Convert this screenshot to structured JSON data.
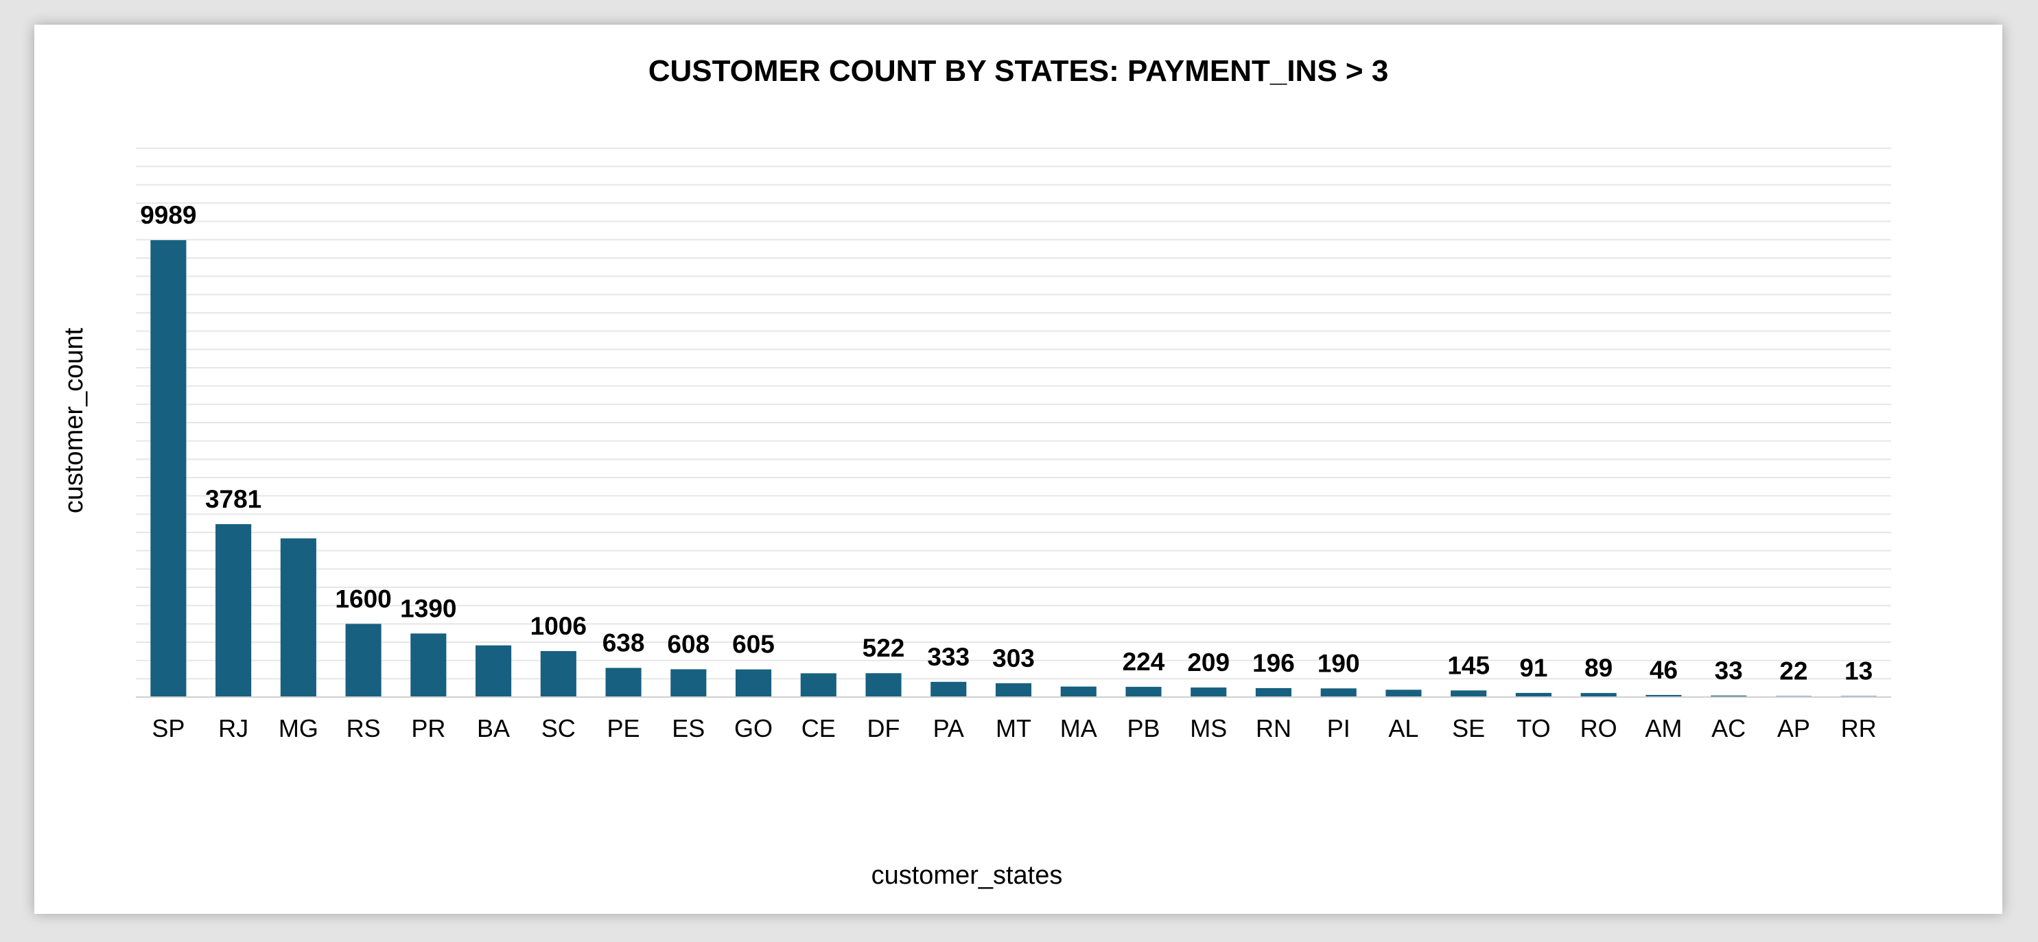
{
  "chart_data": {
    "type": "bar",
    "title": "CUSTOMER COUNT BY STATES: PAYMENT_INS > 3",
    "xlabel": "customer_states",
    "ylabel": "customer_count",
    "categories": [
      "SP",
      "RJ",
      "MG",
      "RS",
      "PR",
      "BA",
      "SC",
      "PE",
      "ES",
      "GO",
      "CE",
      "DF",
      "PA",
      "MT",
      "MA",
      "PB",
      "MS",
      "RN",
      "PI",
      "AL",
      "SE",
      "TO",
      "RO",
      "AM",
      "AC",
      "AP",
      "RR"
    ],
    "values": [
      9989,
      3781,
      3470,
      1600,
      1390,
      1130,
      1006,
      638,
      608,
      605,
      520,
      522,
      333,
      303,
      230,
      224,
      209,
      196,
      190,
      160,
      145,
      91,
      89,
      46,
      33,
      22,
      13
    ],
    "data_labels": [
      "9989",
      "3781",
      "",
      "1600",
      "1390",
      "",
      "1006",
      "638",
      "608",
      "605",
      "",
      "522",
      "333",
      "303",
      "",
      "224",
      "209",
      "196",
      "190",
      "",
      "145",
      "91",
      "89",
      "46",
      "33",
      "22",
      "13"
    ],
    "ylim": [
      0,
      12000
    ],
    "grid": true,
    "legend": "none",
    "bar_color": "#17607f",
    "grid_color": "#e6e6e6",
    "axis_color": "#d0d0d0"
  }
}
